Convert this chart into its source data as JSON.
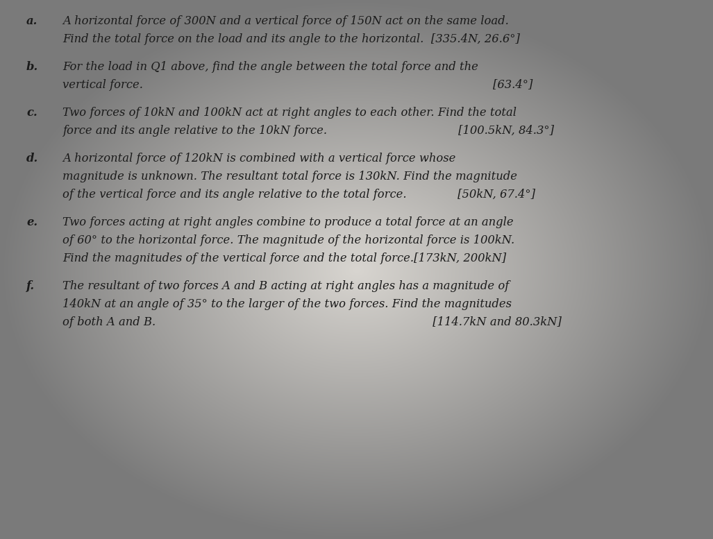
{
  "background_color": "#c8c8c8",
  "text_color": "#1a1a1a",
  "body_fontsize": 11.8,
  "items": [
    {
      "label": "a.",
      "lines": [
        "A horizontal force of 300N and a vertical force of 150N act on the same load.",
        "Find the total force on the load and its angle to the horizontal.  [335.4N, 26.6°]"
      ]
    },
    {
      "label": "b.",
      "lines": [
        "For the load in Q1 above, find the angle between the total force and the",
        "vertical force.                                                                                                [63.4°]"
      ]
    },
    {
      "label": "c.",
      "lines": [
        "Two forces of 10kN and 100kN act at right angles to each other. Find the total",
        "force and its angle relative to the 10kN force.                                    [100.5kN, 84.3°]"
      ]
    },
    {
      "label": "d.",
      "lines": [
        "A horizontal force of 120kN is combined with a vertical force whose",
        "magnitude is unknown. The resultant total force is 130kN. Find the magnitude",
        "of the vertical force and its angle relative to the total force.              [50kN, 67.4°]"
      ]
    },
    {
      "label": "e.",
      "lines": [
        "Two forces acting at right angles combine to produce a total force at an angle",
        "of 60° to the horizontal force. The magnitude of the horizontal force is 100kN.",
        "Find the magnitudes of the vertical force and the total force.[173kN, 200kN]"
      ]
    },
    {
      "label": "f.",
      "lines": [
        "The resultant of two forces A and B acting at right angles has a magnitude of",
        "140kN at an angle of 35° to the larger of the two forces. Find the magnitudes",
        "of both A and B.                                                                            [114.7kN and 80.3kN]"
      ]
    }
  ],
  "vignette": true,
  "vignette_color_dark": "#8a8a8a",
  "vignette_color_mid": "#c0c0c0",
  "vignette_color_light": "#d8d5d0"
}
